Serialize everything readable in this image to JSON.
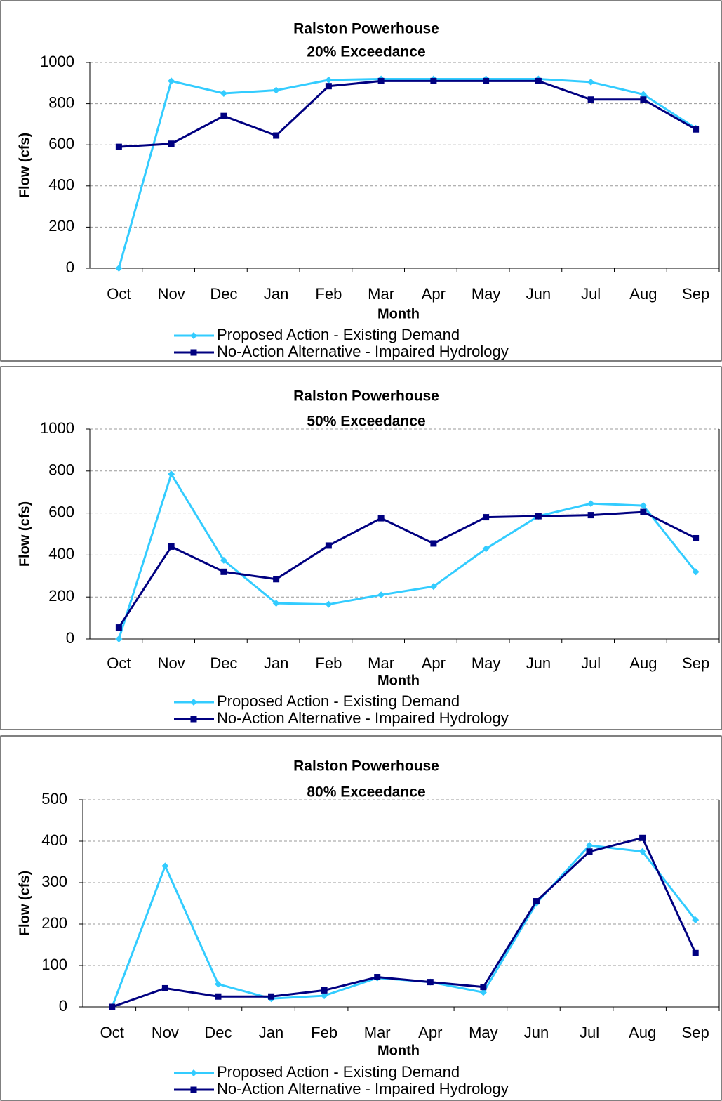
{
  "chart_data": [
    {
      "type": "line",
      "title": "Ralston Powerhouse",
      "subtitle": "20% Exceedance",
      "xlabel": "Month",
      "ylabel": "Flow (cfs)",
      "categories": [
        "Oct",
        "Nov",
        "Dec",
        "Jan",
        "Feb",
        "Mar",
        "Apr",
        "May",
        "Jun",
        "Jul",
        "Aug",
        "Sep"
      ],
      "series": [
        {
          "name": "Proposed Action - Existing Demand",
          "color": "#33ccff",
          "marker": "diamond",
          "values": [
            0,
            910,
            850,
            865,
            915,
            920,
            920,
            920,
            920,
            905,
            845,
            680
          ]
        },
        {
          "name": "No-Action Alternative - Impaired Hydrology",
          "color": "#000080",
          "marker": "square",
          "values": [
            590,
            605,
            740,
            645,
            885,
            910,
            910,
            910,
            910,
            820,
            820,
            675
          ]
        }
      ],
      "ylim": [
        0,
        1000
      ],
      "yticks": [
        0,
        200,
        400,
        600,
        800,
        1000
      ],
      "grid": true
    },
    {
      "type": "line",
      "title": "Ralston Powerhouse",
      "subtitle": "50% Exceedance",
      "xlabel": "Month",
      "ylabel": "Flow (cfs)",
      "categories": [
        "Oct",
        "Nov",
        "Dec",
        "Jan",
        "Feb",
        "Mar",
        "Apr",
        "May",
        "Jun",
        "Jul",
        "Aug",
        "Sep"
      ],
      "series": [
        {
          "name": "Proposed Action - Existing Demand",
          "color": "#33ccff",
          "marker": "diamond",
          "values": [
            0,
            785,
            375,
            170,
            165,
            210,
            250,
            430,
            585,
            645,
            635,
            320
          ]
        },
        {
          "name": "No-Action Alternative - Impaired Hydrology",
          "color": "#000080",
          "marker": "square",
          "values": [
            55,
            440,
            320,
            285,
            445,
            575,
            455,
            580,
            585,
            590,
            605,
            480
          ]
        }
      ],
      "ylim": [
        0,
        1000
      ],
      "yticks": [
        0,
        200,
        400,
        600,
        800,
        1000
      ],
      "grid": true
    },
    {
      "type": "line",
      "title": "Ralston Powerhouse",
      "subtitle": "80% Exceedance",
      "xlabel": "Month",
      "ylabel": "Flow (cfs)",
      "categories": [
        "Oct",
        "Nov",
        "Dec",
        "Jan",
        "Feb",
        "Mar",
        "Apr",
        "May",
        "Jun",
        "Jul",
        "Aug",
        "Sep"
      ],
      "series": [
        {
          "name": "Proposed Action - Existing Demand",
          "color": "#33ccff",
          "marker": "diamond",
          "values": [
            0,
            340,
            55,
            20,
            27,
            70,
            60,
            35,
            250,
            390,
            375,
            210
          ]
        },
        {
          "name": "No-Action Alternative - Impaired Hydrology",
          "color": "#000080",
          "marker": "square",
          "values": [
            0,
            45,
            25,
            25,
            40,
            72,
            60,
            48,
            255,
            375,
            408,
            130
          ]
        }
      ],
      "ylim": [
        0,
        500
      ],
      "yticks": [
        0,
        100,
        200,
        300,
        400,
        500
      ],
      "grid": true
    }
  ]
}
